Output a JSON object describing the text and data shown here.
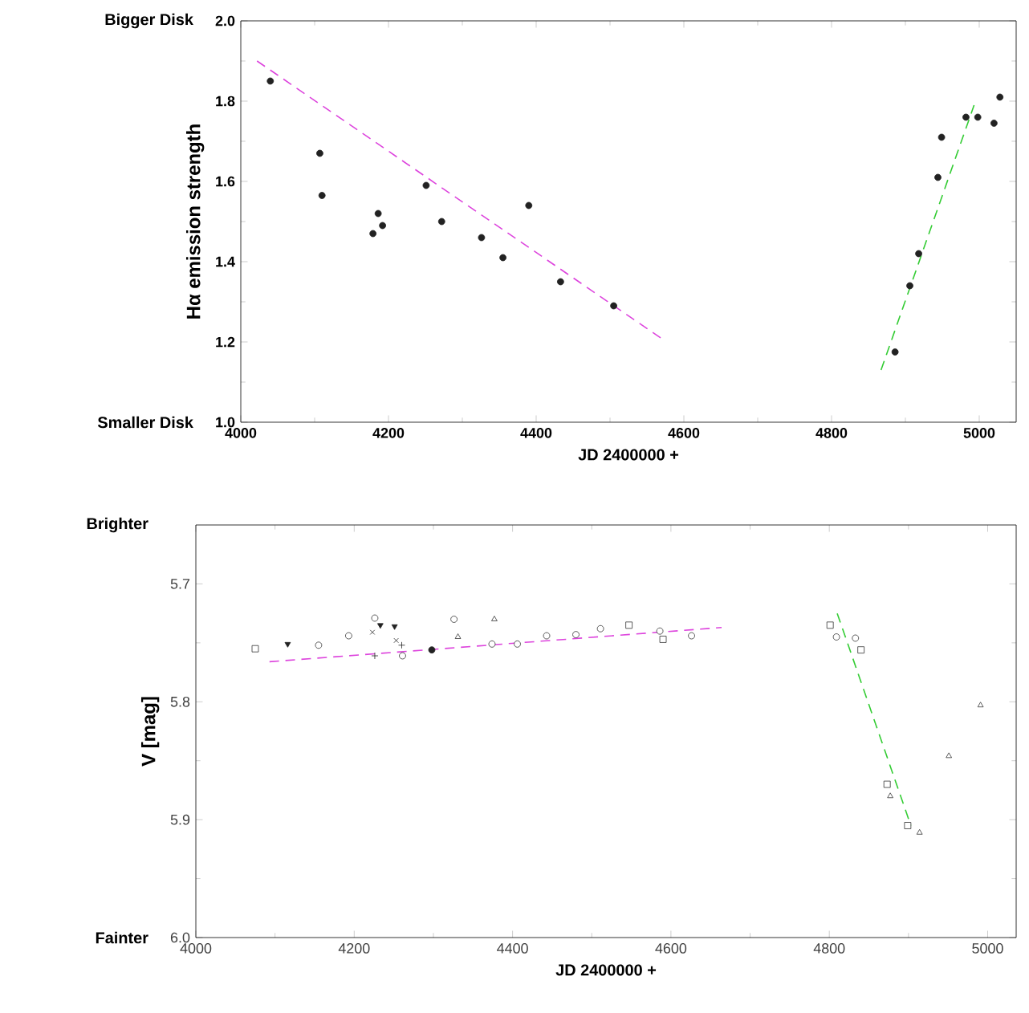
{
  "chart_data": [
    {
      "type": "scatter",
      "xlabel": "JD 2400000 +",
      "ylabel": "Hα emission strength",
      "annotations": [
        "Bigger Disk",
        "Smaller Disk"
      ],
      "xlim": [
        4000,
        5050
      ],
      "ylim": [
        1.0,
        2.0
      ],
      "xticks": [
        4000,
        4200,
        4400,
        4600,
        4800,
        5000
      ],
      "yticks": [
        {
          "value": 1.0,
          "label": "1.0"
        },
        1.2,
        1.4,
        1.6,
        1.8,
        {
          "value": 2.0,
          "label": "2.0"
        }
      ],
      "series": [
        {
          "color": "#222222",
          "marker": "dot",
          "x": [
            4040,
            4107,
            4110,
            4179,
            4186,
            4192,
            4251,
            4272,
            4326,
            4355,
            4390,
            4433,
            4505,
            4886,
            4906,
            4918,
            4944,
            4949,
            4982,
            4998,
            5020,
            5028
          ],
          "values": [
            1.85,
            1.67,
            1.565,
            1.47,
            1.52,
            1.49,
            1.59,
            1.5,
            1.46,
            1.41,
            1.54,
            1.35,
            1.29,
            1.175,
            1.34,
            1.42,
            1.61,
            1.71,
            1.76,
            1.76,
            1.745,
            1.81
          ]
        },
        {
          "type": "line",
          "color": "#dd44dd",
          "line_style": "dashed",
          "marker": "none",
          "x": [
            4022,
            4571
          ],
          "values": [
            1.9,
            1.207
          ]
        },
        {
          "type": "line",
          "color": "#33cc33",
          "line_style": "dashed",
          "marker": "none",
          "x": [
            4867,
            4993
          ],
          "values": [
            1.13,
            1.79
          ]
        }
      ]
    },
    {
      "type": "scatter",
      "xlabel": "JD 2400000 +",
      "ylabel": "V [mag]",
      "annotations": [
        "Brighter",
        "Fainter"
      ],
      "xlim": [
        4000,
        5036
      ],
      "ylim": [
        6.0,
        5.65
      ],
      "xticks": [
        4000,
        4200,
        4400,
        4600,
        4800,
        5000
      ],
      "yticks": [
        5.7,
        5.8,
        5.9,
        {
          "value": 6.0,
          "label": "6.0"
        }
      ],
      "series": [
        {
          "color": "#333333",
          "marker": "square",
          "x": [
            4075,
            4547,
            4590,
            4801,
            4840,
            4873,
            4899
          ],
          "values": [
            5.755,
            5.735,
            5.747,
            5.735,
            5.756,
            5.87,
            5.905
          ]
        },
        {
          "color": "#333333",
          "marker": "circle",
          "x": [
            4155,
            4193,
            4226,
            4261,
            4326,
            4374,
            4406,
            4443,
            4480,
            4511,
            4586,
            4626,
            4809,
            4833
          ],
          "values": [
            5.752,
            5.744,
            5.729,
            5.761,
            5.73,
            5.751,
            5.751,
            5.744,
            5.743,
            5.738,
            5.74,
            5.744,
            5.745,
            5.746
          ]
        },
        {
          "color": "#333333",
          "marker": "triangle",
          "x": [
            4331,
            4377,
            4877,
            4914,
            4951,
            4991
          ],
          "values": [
            5.745,
            5.73,
            5.88,
            5.911,
            5.846,
            5.803
          ]
        },
        {
          "color": "#222222",
          "marker": "triangle_down",
          "x": [
            4116,
            4233,
            4251
          ],
          "values": [
            5.751,
            5.735,
            5.736
          ]
        },
        {
          "color": "#222222",
          "marker": "cross",
          "x": [
            4223,
            4253
          ],
          "values": [
            5.741,
            5.748
          ]
        },
        {
          "color": "#222222",
          "marker": "plus",
          "x": [
            4226,
            4260
          ],
          "values": [
            5.761,
            5.752
          ]
        },
        {
          "color": "#222222",
          "marker": "dot",
          "x": [
            4298
          ],
          "values": [
            5.756
          ]
        },
        {
          "type": "line",
          "color": "#dd44dd",
          "line_style": "dashed",
          "marker": "none",
          "x": [
            4093,
            4664
          ],
          "values": [
            5.766,
            5.737
          ]
        },
        {
          "type": "line",
          "color": "#33cc33",
          "line_style": "dashed",
          "marker": "none",
          "x": [
            4810,
            4903
          ],
          "values": [
            5.725,
            5.905
          ]
        }
      ]
    }
  ]
}
